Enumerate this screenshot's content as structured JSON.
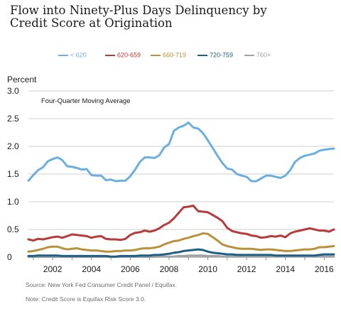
{
  "title_line1": "Flow into Ninety-Plus Days Delinquency by",
  "title_line2": "Credit Score at Origination",
  "source": "Source: New York Fed Consumer Credit Panel / Equifax.",
  "note": "Note: Credit Score is Equifax Risk Score 3.0.",
  "chart_data": {
    "type": "line",
    "ylabel": "Percent",
    "annotation": "Four-Quarter Moving Average",
    "xlim": [
      2000.75,
      2016.5
    ],
    "ylim": [
      0,
      3.0
    ],
    "yticks": [
      "0",
      "0.5",
      "1.0",
      "1.5",
      "2.0",
      "2.5",
      "3.0"
    ],
    "ytick_values": [
      0,
      0.5,
      1.0,
      1.5,
      2.0,
      2.5,
      3.0
    ],
    "xticks": [
      "2002",
      "2004",
      "2006",
      "2008",
      "2010",
      "2012",
      "2014",
      "2016"
    ],
    "xtick_values": [
      2002,
      2004,
      2006,
      2008,
      2010,
      2012,
      2014,
      2016
    ],
    "grid": true,
    "legend_position": "top",
    "x": [
      2000.75,
      2001.0,
      2001.25,
      2001.5,
      2001.75,
      2002.0,
      2002.25,
      2002.5,
      2002.75,
      2003.0,
      2003.25,
      2003.5,
      2003.75,
      2004.0,
      2004.25,
      2004.5,
      2004.75,
      2005.0,
      2005.25,
      2005.5,
      2005.75,
      2006.0,
      2006.25,
      2006.5,
      2006.75,
      2007.0,
      2007.25,
      2007.5,
      2007.75,
      2008.0,
      2008.25,
      2008.5,
      2008.75,
      2009.0,
      2009.25,
      2009.5,
      2009.75,
      2010.0,
      2010.25,
      2010.5,
      2010.75,
      2011.0,
      2011.25,
      2011.5,
      2011.75,
      2012.0,
      2012.25,
      2012.5,
      2012.75,
      2013.0,
      2013.25,
      2013.5,
      2013.75,
      2014.0,
      2014.25,
      2014.5,
      2014.75,
      2015.0,
      2015.25,
      2015.5,
      2015.75,
      2016.0,
      2016.25,
      2016.5
    ],
    "series": [
      {
        "name": "< 620",
        "color": "#6bafe0",
        "values": [
          1.38,
          1.48,
          1.57,
          1.62,
          1.73,
          1.77,
          1.8,
          1.75,
          1.64,
          1.63,
          1.61,
          1.58,
          1.59,
          1.48,
          1.47,
          1.47,
          1.39,
          1.4,
          1.37,
          1.38,
          1.38,
          1.46,
          1.58,
          1.72,
          1.8,
          1.8,
          1.79,
          1.84,
          1.98,
          2.04,
          2.28,
          2.34,
          2.37,
          2.43,
          2.34,
          2.32,
          2.24,
          2.11,
          1.97,
          1.83,
          1.7,
          1.6,
          1.58,
          1.5,
          1.47,
          1.45,
          1.37,
          1.37,
          1.42,
          1.47,
          1.47,
          1.45,
          1.43,
          1.47,
          1.57,
          1.72,
          1.79,
          1.83,
          1.85,
          1.87,
          1.92,
          1.94,
          1.95,
          1.96
        ]
      },
      {
        "name": "620-659",
        "color": "#b83a3a",
        "values": [
          0.32,
          0.3,
          0.33,
          0.32,
          0.34,
          0.36,
          0.37,
          0.35,
          0.38,
          0.41,
          0.4,
          0.39,
          0.38,
          0.35,
          0.37,
          0.38,
          0.33,
          0.32,
          0.32,
          0.31,
          0.33,
          0.4,
          0.44,
          0.45,
          0.48,
          0.46,
          0.48,
          0.52,
          0.58,
          0.62,
          0.7,
          0.8,
          0.9,
          0.91,
          0.93,
          0.83,
          0.82,
          0.81,
          0.76,
          0.71,
          0.65,
          0.53,
          0.47,
          0.45,
          0.43,
          0.42,
          0.39,
          0.38,
          0.35,
          0.36,
          0.38,
          0.37,
          0.39,
          0.36,
          0.43,
          0.46,
          0.48,
          0.5,
          0.52,
          0.5,
          0.48,
          0.48,
          0.46,
          0.5
        ]
      },
      {
        "name": "660-719",
        "color": "#b8913a",
        "values": [
          0.1,
          0.11,
          0.13,
          0.15,
          0.18,
          0.19,
          0.19,
          0.16,
          0.14,
          0.15,
          0.16,
          0.14,
          0.13,
          0.12,
          0.12,
          0.11,
          0.1,
          0.1,
          0.11,
          0.11,
          0.12,
          0.12,
          0.13,
          0.15,
          0.16,
          0.16,
          0.17,
          0.19,
          0.23,
          0.26,
          0.29,
          0.3,
          0.33,
          0.35,
          0.38,
          0.4,
          0.43,
          0.42,
          0.36,
          0.3,
          0.23,
          0.2,
          0.18,
          0.16,
          0.15,
          0.15,
          0.15,
          0.14,
          0.13,
          0.14,
          0.14,
          0.13,
          0.12,
          0.11,
          0.11,
          0.12,
          0.13,
          0.14,
          0.14,
          0.15,
          0.18,
          0.18,
          0.19,
          0.2
        ]
      },
      {
        "name": "720-759",
        "color": "#1f5f86",
        "values": [
          0.02,
          0.02,
          0.03,
          0.03,
          0.03,
          0.03,
          0.03,
          0.02,
          0.02,
          0.02,
          0.02,
          0.02,
          0.02,
          0.02,
          0.02,
          0.02,
          0.02,
          0.01,
          0.01,
          0.02,
          0.02,
          0.02,
          0.02,
          0.03,
          0.03,
          0.03,
          0.04,
          0.04,
          0.05,
          0.06,
          0.08,
          0.09,
          0.11,
          0.12,
          0.13,
          0.14,
          0.13,
          0.1,
          0.08,
          0.07,
          0.06,
          0.05,
          0.05,
          0.04,
          0.04,
          0.04,
          0.04,
          0.04,
          0.04,
          0.04,
          0.04,
          0.03,
          0.03,
          0.03,
          0.03,
          0.03,
          0.03,
          0.03,
          0.03,
          0.03,
          0.04,
          0.05,
          0.05,
          0.05
        ]
      },
      {
        "name": "760+",
        "color": "#a3a3a3",
        "values": [
          0.005,
          0.005,
          0.005,
          0.005,
          0.005,
          0.005,
          0.005,
          0.005,
          0.005,
          0.005,
          0.005,
          0.005,
          0.005,
          0.005,
          0.005,
          0.005,
          0.005,
          0.005,
          0.005,
          0.005,
          0.005,
          0.005,
          0.005,
          0.005,
          0.005,
          0.005,
          0.005,
          0.01,
          0.01,
          0.01,
          0.01,
          0.02,
          0.02,
          0.03,
          0.03,
          0.03,
          0.03,
          0.02,
          0.02,
          0.02,
          0.01,
          0.01,
          0.01,
          0.01,
          0.01,
          0.01,
          0.01,
          0.01,
          0.01,
          0.01,
          0.01,
          0.01,
          0.01,
          0.01,
          0.01,
          0.01,
          0.01,
          0.01,
          0.01,
          0.01,
          0.01,
          0.01,
          0.01,
          0.01
        ]
      }
    ]
  }
}
